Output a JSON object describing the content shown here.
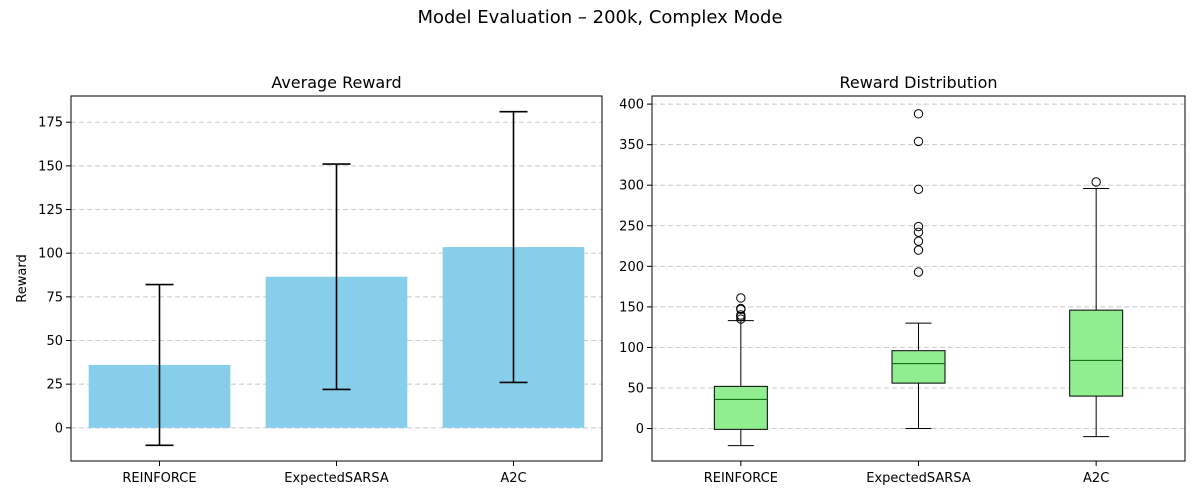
{
  "figure": {
    "suptitle": "Model Evaluation – 200k, Complex Mode"
  },
  "chart_data": [
    {
      "type": "bar",
      "title": "Average Reward",
      "xlabel": "",
      "ylabel": "Reward",
      "categories": [
        "REINFORCE",
        "ExpectedSARSA",
        "A2C"
      ],
      "values": [
        36,
        86.5,
        103.5
      ],
      "error": [
        46,
        64.5,
        77.5
      ],
      "ylim": [
        -19,
        190
      ],
      "yticks": [
        0,
        25,
        50,
        75,
        100,
        125,
        150,
        175
      ],
      "grid": "y-dashed",
      "bar_color": "#87CEEB",
      "error_color": "#000000"
    },
    {
      "type": "box",
      "title": "Reward Distribution",
      "xlabel": "",
      "ylabel": "",
      "categories": [
        "REINFORCE",
        "ExpectedSARSA",
        "A2C"
      ],
      "boxes": [
        {
          "whisker_low": -21,
          "q1": -1,
          "median": 36,
          "q3": 52,
          "whisker_high": 133,
          "fliers": [
            135,
            138,
            140,
            147,
            148,
            161
          ]
        },
        {
          "whisker_low": 0,
          "q1": 56,
          "median": 80,
          "q3": 96,
          "whisker_high": 130,
          "fliers": [
            193,
            220,
            231,
            242,
            249,
            295,
            354,
            388
          ]
        },
        {
          "whisker_low": -10,
          "q1": 40,
          "median": 84,
          "q3": 146,
          "whisker_high": 296,
          "fliers": [
            304
          ]
        }
      ],
      "ylim": [
        -40,
        410
      ],
      "yticks": [
        0,
        50,
        100,
        150,
        200,
        250,
        300,
        350,
        400
      ],
      "grid": "y-dashed",
      "box_color": "#90EE90",
      "median_color": "#006400"
    }
  ]
}
